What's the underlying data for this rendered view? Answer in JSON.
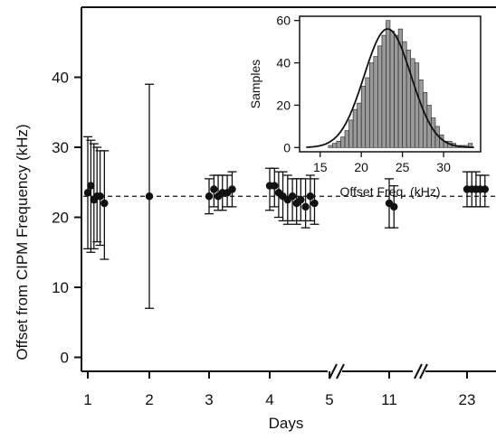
{
  "chart_data": [
    {
      "type": "scatter",
      "title": "",
      "xlabel": "Days",
      "ylabel": "Offset from CIPM Frequency (kHz)",
      "ylim": [
        -2,
        50
      ],
      "x_ticks": [
        "1",
        "2",
        "3",
        "4",
        "5",
        "11",
        "23"
      ],
      "y_ticks": [
        0,
        10,
        20,
        30,
        40
      ],
      "axis_breaks": [
        "between 5 and 11",
        "between 11 and 23"
      ],
      "reference_line": {
        "value": 23,
        "style": "dashed"
      },
      "series": [
        {
          "points": [
            {
              "day": 1.0,
              "y": 23.5,
              "lo": 15.5,
              "hi": 31.5
            },
            {
              "day": 1.05,
              "y": 24.5,
              "lo": 15.0,
              "hi": 31.0
            },
            {
              "day": 1.1,
              "y": 22.5,
              "lo": 15.5,
              "hi": 30.5
            },
            {
              "day": 1.15,
              "y": 23.0,
              "lo": 16.5,
              "hi": 30.0
            },
            {
              "day": 1.2,
              "y": 23.0,
              "lo": 16.0,
              "hi": 29.5
            },
            {
              "day": 1.27,
              "y": 22.0,
              "lo": 14.0,
              "hi": 29.5
            },
            {
              "day": 2.0,
              "y": 23.0,
              "lo": 7.0,
              "hi": 39.0
            },
            {
              "day": 3.0,
              "y": 23.0,
              "lo": 20.5,
              "hi": 25.5
            },
            {
              "day": 3.08,
              "y": 24.0,
              "lo": 21.5,
              "hi": 26.0
            },
            {
              "day": 3.15,
              "y": 23.0,
              "lo": 21.0,
              "hi": 26.0
            },
            {
              "day": 3.22,
              "y": 23.5,
              "lo": 21.0,
              "hi": 26.0
            },
            {
              "day": 3.3,
              "y": 23.5,
              "lo": 21.5,
              "hi": 26.0
            },
            {
              "day": 3.38,
              "y": 24.0,
              "lo": 21.5,
              "hi": 26.5
            },
            {
              "day": 4.0,
              "y": 24.5,
              "lo": 21.0,
              "hi": 27.0
            },
            {
              "day": 4.08,
              "y": 24.5,
              "lo": 21.5,
              "hi": 27.0
            },
            {
              "day": 4.15,
              "y": 23.5,
              "lo": 20.0,
              "hi": 26.5
            },
            {
              "day": 4.22,
              "y": 23.0,
              "lo": 19.5,
              "hi": 26.5
            },
            {
              "day": 4.3,
              "y": 22.5,
              "lo": 19.0,
              "hi": 26.0
            },
            {
              "day": 4.38,
              "y": 23.0,
              "lo": 19.5,
              "hi": 25.5
            },
            {
              "day": 4.45,
              "y": 22.0,
              "lo": 19.0,
              "hi": 25.5
            },
            {
              "day": 4.52,
              "y": 22.5,
              "lo": 19.5,
              "hi": 25.5
            },
            {
              "day": 4.6,
              "y": 21.5,
              "lo": 18.5,
              "hi": 25.5
            },
            {
              "day": 4.68,
              "y": 23.0,
              "lo": 19.5,
              "hi": 26.0
            },
            {
              "day": 4.75,
              "y": 22.0,
              "lo": 19.0,
              "hi": 25.5
            },
            {
              "day": 11.0,
              "y": 22.0,
              "lo": 18.5,
              "hi": 25.5
            },
            {
              "day": 11.08,
              "y": 21.5,
              "lo": 18.5,
              "hi": 24.5
            },
            {
              "day": 23.0,
              "y": 24.0,
              "lo": 21.5,
              "hi": 26.5
            },
            {
              "day": 23.08,
              "y": 24.0,
              "lo": 21.5,
              "hi": 26.5
            },
            {
              "day": 23.15,
              "y": 24.0,
              "lo": 21.5,
              "hi": 26.5
            },
            {
              "day": 23.22,
              "y": 24.0,
              "lo": 21.5,
              "hi": 26.0
            },
            {
              "day": 23.3,
              "y": 24.0,
              "lo": 21.5,
              "hi": 26.0
            }
          ]
        }
      ]
    },
    {
      "type": "bar",
      "title": "",
      "xlabel": "Offset Freq. (kHz)",
      "ylabel": "Samples",
      "xlim": [
        12.5,
        34.5
      ],
      "ylim": [
        -2,
        62
      ],
      "x_ticks": [
        15,
        20,
        25,
        30
      ],
      "y_ticks": [
        0,
        20,
        40,
        60
      ],
      "bin_width": 0.5,
      "bin_starts": [
        12.5,
        13.0,
        13.5,
        14.0,
        14.5,
        15.0,
        15.5,
        16.0,
        16.5,
        17.0,
        17.5,
        18.0,
        18.5,
        19.0,
        19.5,
        20.0,
        20.5,
        21.0,
        21.5,
        22.0,
        22.5,
        23.0,
        23.5,
        24.0,
        24.5,
        25.0,
        25.5,
        26.0,
        26.5,
        27.0,
        27.5,
        28.0,
        28.5,
        29.0,
        29.5,
        30.0,
        30.5,
        31.0,
        31.5,
        32.0,
        32.5,
        33.0,
        33.5,
        34.0
      ],
      "values": [
        0,
        0,
        0,
        0,
        0,
        0,
        0,
        1,
        2,
        3,
        5,
        8,
        13,
        18,
        21,
        29,
        33,
        40,
        43,
        48,
        53,
        60,
        55,
        53,
        56,
        50,
        46,
        42,
        40,
        32,
        26,
        20,
        14,
        10,
        6,
        3,
        3,
        2,
        1,
        1,
        1,
        2,
        0,
        0
      ],
      "fit": {
        "type": "gaussian",
        "amplitude": 56,
        "mean": 23.2,
        "sigma": 2.85
      }
    }
  ]
}
